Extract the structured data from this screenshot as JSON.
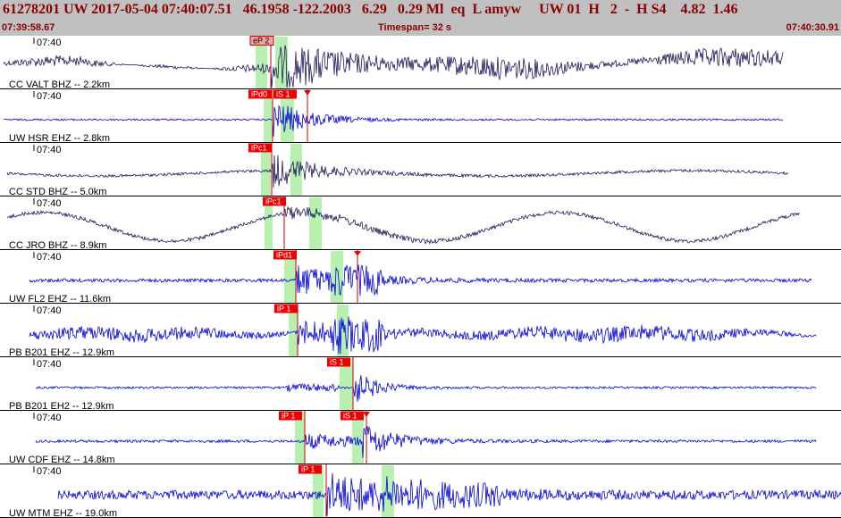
{
  "header": {
    "title": "61278201 UW 2017-05-04 07:40:07.51   46.1958 -122.2003   6.29   0.29 Ml  eq  L amyw     UW 01  H   2  -  H S4    4.82  1.46",
    "start_time": "07:39:58.67",
    "timespan": "Timespan=  32 s",
    "end_time": "07:40:30.91"
  },
  "colors": {
    "header_bg": "#c0c0c0",
    "header_text": "#8b0000",
    "trace_dark": "#1a1a5c",
    "trace_blue": "#0000dd",
    "pick_box": "#ee0000",
    "pick_box_light": "#f4a0a0",
    "window_green": "#b8f0b0",
    "separator": "#000000"
  },
  "traces": [
    {
      "station": "CC VALT BHZ -- 2.2km",
      "minute_mark": "07:40",
      "picks": [
        "eP 2"
      ],
      "light_pick": true,
      "color": "dark"
    },
    {
      "station": "UW HSR EHZ -- 2.8km",
      "minute_mark": "07:40",
      "picks": [
        "iPd0",
        "iS 1"
      ],
      "light_pick": false,
      "color": "blue"
    },
    {
      "station": "CC STD BHZ -- 5.0km",
      "minute_mark": "07:40",
      "picks": [
        "iPc1"
      ],
      "light_pick": false,
      "color": "dark"
    },
    {
      "station": "CC JRO BHZ -- 8.9km",
      "minute_mark": "07:40",
      "picks": [
        "iPc1"
      ],
      "light_pick": false,
      "color": "dark"
    },
    {
      "station": "UW FL2 EHZ -- 11.6km",
      "minute_mark": "07:40",
      "picks": [
        "iPd1"
      ],
      "light_pick": false,
      "color": "blue"
    },
    {
      "station": "PB B201 EHZ -- 12.9km",
      "minute_mark": "07:40",
      "picks": [
        "iP 1"
      ],
      "light_pick": false,
      "color": "blue"
    },
    {
      "station": "PB B201 EH2 -- 12.9km",
      "minute_mark": "07:40",
      "picks": [
        "iS 1"
      ],
      "light_pick": false,
      "color": "blue"
    },
    {
      "station": "UW CDF EHZ -- 14.8km",
      "minute_mark": "07:40",
      "picks": [
        "iP 1",
        "iS 1"
      ],
      "light_pick": false,
      "color": "blue"
    },
    {
      "station": "UW MTM EHZ -- 19.0km",
      "minute_mark": "07:40",
      "picks": [
        "iP 1"
      ],
      "light_pick": false,
      "color": "blue"
    }
  ]
}
